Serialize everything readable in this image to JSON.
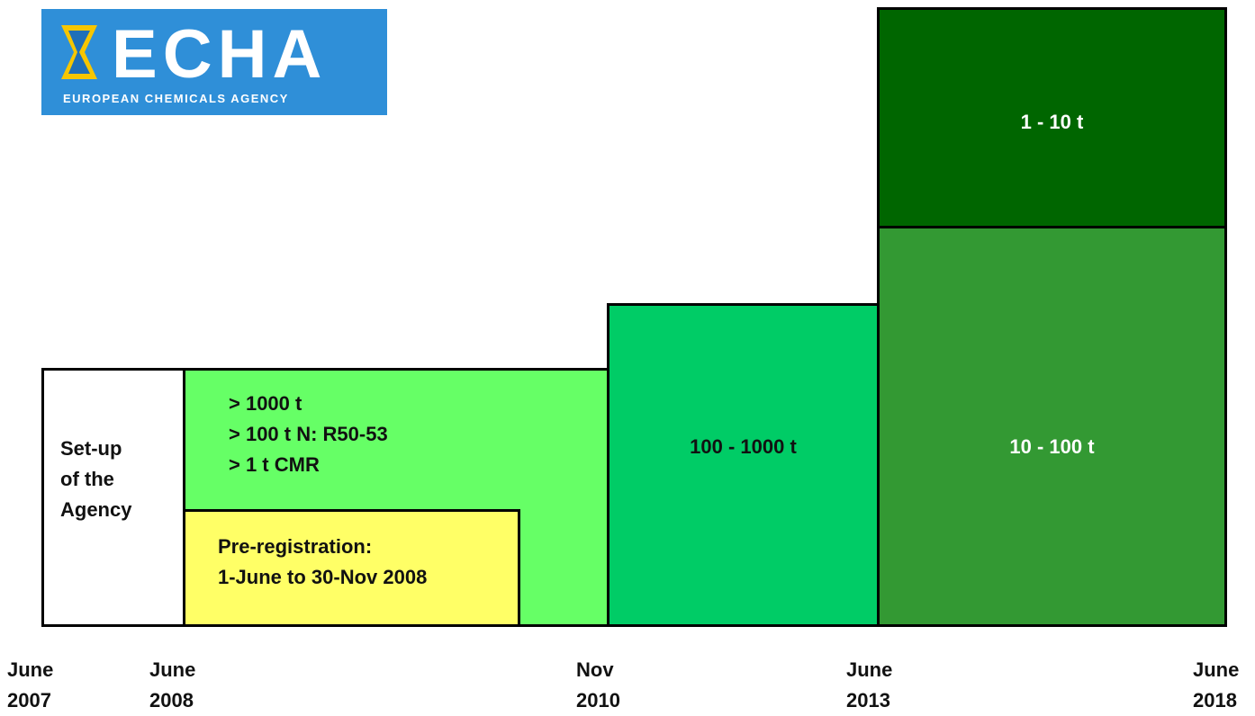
{
  "logo": {
    "name": "ECHA",
    "tagline": "EUROPEAN CHEMICALS AGENCY"
  },
  "boxes": [
    {
      "lines": [
        "Set-up",
        "of the",
        "Agency"
      ]
    },
    {
      "lines": [
        "> 1000 t",
        "> 100 t N: R50-53",
        "> 1 t CMR"
      ]
    },
    {
      "lines": [
        "Pre-registration:",
        "1-June to 30-Nov 2008"
      ]
    },
    {
      "lines": [
        "100 - 1000 t"
      ]
    },
    {
      "lines": [
        "10 - 100 t"
      ]
    },
    {
      "lines": [
        "1 - 10 t"
      ]
    }
  ],
  "timeline": [
    {
      "month": "June",
      "year": "2007"
    },
    {
      "month": "June",
      "year": "2008"
    },
    {
      "month": "Nov",
      "year": "2010"
    },
    {
      "month": "June",
      "year": "2013"
    },
    {
      "month": "June",
      "year": "2018"
    }
  ]
}
